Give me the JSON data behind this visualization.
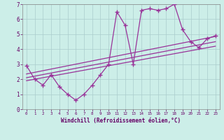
{
  "xlabel": "Windchill (Refroidissement éolien,°C)",
  "background_color": "#cceee8",
  "grid_color": "#aacccc",
  "line_color": "#993399",
  "xlim": [
    -0.5,
    23.5
  ],
  "ylim": [
    0,
    7
  ],
  "xticks": [
    0,
    1,
    2,
    3,
    4,
    5,
    6,
    7,
    8,
    9,
    10,
    11,
    12,
    13,
    14,
    15,
    16,
    17,
    18,
    19,
    20,
    21,
    22,
    23
  ],
  "yticks": [
    0,
    1,
    2,
    3,
    4,
    5,
    6,
    7
  ],
  "data_x": [
    0,
    1,
    2,
    3,
    4,
    5,
    6,
    7,
    8,
    9,
    10,
    11,
    12,
    13,
    14,
    15,
    16,
    17,
    18,
    19,
    20,
    21,
    22,
    23
  ],
  "data_y": [
    2.9,
    2.0,
    1.6,
    2.3,
    1.5,
    1.0,
    0.6,
    1.0,
    1.6,
    2.3,
    3.0,
    6.5,
    5.6,
    3.0,
    6.6,
    6.7,
    6.6,
    6.7,
    7.0,
    5.3,
    4.5,
    4.1,
    4.7,
    4.9
  ],
  "trend1_x": [
    0,
    23
  ],
  "trend1_y": [
    1.9,
    4.2
  ],
  "trend2_x": [
    0,
    23
  ],
  "trend2_y": [
    2.1,
    4.5
  ],
  "trend3_x": [
    0,
    23
  ],
  "trend3_y": [
    2.35,
    4.85
  ]
}
